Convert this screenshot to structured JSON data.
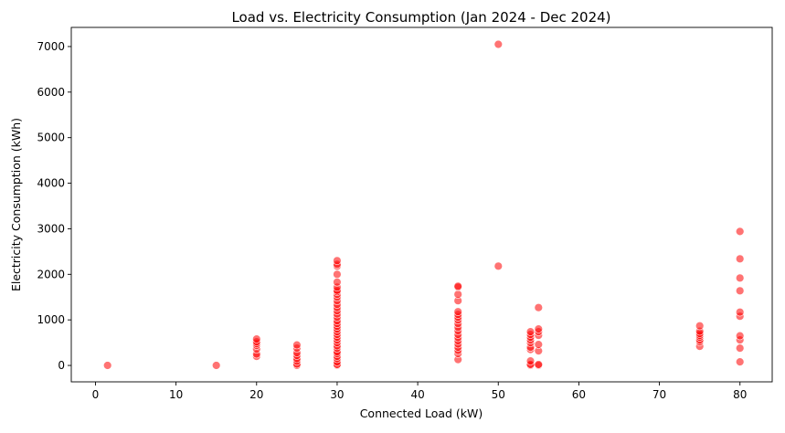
{
  "chart_data": {
    "type": "scatter",
    "title": "Load vs. Electricity Consumption (Jan 2024 - Dec 2024)",
    "xlabel": "Connected Load (kW)",
    "ylabel": "Electricity Consumption (kWh)",
    "xlim": [
      -3,
      84
    ],
    "ylim": [
      -360,
      7420
    ],
    "xticks": [
      0,
      10,
      20,
      30,
      40,
      50,
      60,
      70,
      80
    ],
    "yticks": [
      0,
      1000,
      2000,
      3000,
      4000,
      5000,
      6000,
      7000
    ],
    "xtick_labels": [
      "0",
      "10",
      "20",
      "30",
      "40",
      "50",
      "60",
      "70",
      "80"
    ],
    "ytick_labels": [
      "0",
      "1000",
      "2000",
      "3000",
      "4000",
      "5000",
      "6000",
      "7000"
    ],
    "grid": false,
    "legend": "none",
    "marker_color": "#ff0000",
    "marker_opacity": 0.55,
    "points": [
      {
        "x": 1.5,
        "y": 0
      },
      {
        "x": 15,
        "y": 0
      },
      {
        "x": 20,
        "y": 200
      },
      {
        "x": 20,
        "y": 250
      },
      {
        "x": 20,
        "y": 360
      },
      {
        "x": 20,
        "y": 440
      },
      {
        "x": 20,
        "y": 480
      },
      {
        "x": 20,
        "y": 520
      },
      {
        "x": 20,
        "y": 580
      },
      {
        "x": 25,
        "y": 0
      },
      {
        "x": 25,
        "y": 30
      },
      {
        "x": 25,
        "y": 100
      },
      {
        "x": 25,
        "y": 150
      },
      {
        "x": 25,
        "y": 220
      },
      {
        "x": 25,
        "y": 280
      },
      {
        "x": 25,
        "y": 380
      },
      {
        "x": 25,
        "y": 450
      },
      {
        "x": 30,
        "y": 0
      },
      {
        "x": 30,
        "y": 20
      },
      {
        "x": 30,
        "y": 80
      },
      {
        "x": 30,
        "y": 150
      },
      {
        "x": 30,
        "y": 200
      },
      {
        "x": 30,
        "y": 260
      },
      {
        "x": 30,
        "y": 300
      },
      {
        "x": 30,
        "y": 380
      },
      {
        "x": 30,
        "y": 430
      },
      {
        "x": 30,
        "y": 500
      },
      {
        "x": 30,
        "y": 560
      },
      {
        "x": 30,
        "y": 620
      },
      {
        "x": 30,
        "y": 680
      },
      {
        "x": 30,
        "y": 740
      },
      {
        "x": 30,
        "y": 800
      },
      {
        "x": 30,
        "y": 860
      },
      {
        "x": 30,
        "y": 920
      },
      {
        "x": 30,
        "y": 980
      },
      {
        "x": 30,
        "y": 1060
      },
      {
        "x": 30,
        "y": 1130
      },
      {
        "x": 30,
        "y": 1200
      },
      {
        "x": 30,
        "y": 1270
      },
      {
        "x": 30,
        "y": 1340
      },
      {
        "x": 30,
        "y": 1420
      },
      {
        "x": 30,
        "y": 1500
      },
      {
        "x": 30,
        "y": 1560
      },
      {
        "x": 30,
        "y": 1620
      },
      {
        "x": 30,
        "y": 1650
      },
      {
        "x": 30,
        "y": 1720
      },
      {
        "x": 30,
        "y": 1830
      },
      {
        "x": 30,
        "y": 2000
      },
      {
        "x": 30,
        "y": 2180
      },
      {
        "x": 30,
        "y": 2220
      },
      {
        "x": 30,
        "y": 2300
      },
      {
        "x": 45,
        "y": 130
      },
      {
        "x": 45,
        "y": 260
      },
      {
        "x": 45,
        "y": 330
      },
      {
        "x": 45,
        "y": 400
      },
      {
        "x": 45,
        "y": 470
      },
      {
        "x": 45,
        "y": 540
      },
      {
        "x": 45,
        "y": 610
      },
      {
        "x": 45,
        "y": 680
      },
      {
        "x": 45,
        "y": 760
      },
      {
        "x": 45,
        "y": 840
      },
      {
        "x": 45,
        "y": 920
      },
      {
        "x": 45,
        "y": 1000
      },
      {
        "x": 45,
        "y": 1060
      },
      {
        "x": 45,
        "y": 1120
      },
      {
        "x": 45,
        "y": 1180
      },
      {
        "x": 45,
        "y": 1420
      },
      {
        "x": 45,
        "y": 1560
      },
      {
        "x": 45,
        "y": 1720
      },
      {
        "x": 45,
        "y": 1740
      },
      {
        "x": 50,
        "y": 2180
      },
      {
        "x": 50,
        "y": 7050
      },
      {
        "x": 54,
        "y": 0
      },
      {
        "x": 54,
        "y": 20
      },
      {
        "x": 54,
        "y": 100
      },
      {
        "x": 54,
        "y": 350
      },
      {
        "x": 54,
        "y": 400
      },
      {
        "x": 54,
        "y": 500
      },
      {
        "x": 54,
        "y": 560
      },
      {
        "x": 54,
        "y": 620
      },
      {
        "x": 54,
        "y": 680
      },
      {
        "x": 54,
        "y": 740
      },
      {
        "x": 55,
        "y": 0
      },
      {
        "x": 55,
        "y": 20
      },
      {
        "x": 55,
        "y": 320
      },
      {
        "x": 55,
        "y": 460
      },
      {
        "x": 55,
        "y": 660
      },
      {
        "x": 55,
        "y": 740
      },
      {
        "x": 55,
        "y": 800
      },
      {
        "x": 55,
        "y": 1270
      },
      {
        "x": 75,
        "y": 420
      },
      {
        "x": 75,
        "y": 520
      },
      {
        "x": 75,
        "y": 560
      },
      {
        "x": 75,
        "y": 620
      },
      {
        "x": 75,
        "y": 660
      },
      {
        "x": 75,
        "y": 700
      },
      {
        "x": 75,
        "y": 750
      },
      {
        "x": 75,
        "y": 870
      },
      {
        "x": 80,
        "y": 80
      },
      {
        "x": 80,
        "y": 380
      },
      {
        "x": 80,
        "y": 560
      },
      {
        "x": 80,
        "y": 650
      },
      {
        "x": 80,
        "y": 1080
      },
      {
        "x": 80,
        "y": 1170
      },
      {
        "x": 80,
        "y": 1640
      },
      {
        "x": 80,
        "y": 1920
      },
      {
        "x": 80,
        "y": 2340
      },
      {
        "x": 80,
        "y": 2940
      }
    ]
  }
}
